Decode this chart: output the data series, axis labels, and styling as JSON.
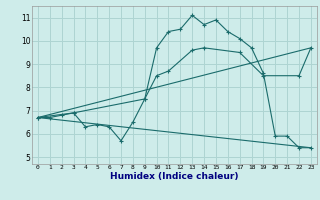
{
  "xlabel": "Humidex (Indice chaleur)",
  "xlim": [
    -0.5,
    23.5
  ],
  "ylim": [
    4.7,
    11.5
  ],
  "yticks": [
    5,
    6,
    7,
    8,
    9,
    10,
    11
  ],
  "xticks": [
    0,
    1,
    2,
    3,
    4,
    5,
    6,
    7,
    8,
    9,
    10,
    11,
    12,
    13,
    14,
    15,
    16,
    17,
    18,
    19,
    20,
    21,
    22,
    23
  ],
  "bg_color": "#ceecea",
  "grid_color": "#aed4d2",
  "line_color": "#1a6b6b",
  "line1_x": [
    0,
    1,
    2,
    3,
    4,
    5,
    6,
    7,
    8,
    9,
    10,
    11,
    12,
    13,
    14,
    15,
    16,
    17,
    18,
    19,
    20,
    21,
    22,
    23
  ],
  "line1_y": [
    6.7,
    6.7,
    6.8,
    6.9,
    6.3,
    6.4,
    6.3,
    5.7,
    6.5,
    7.5,
    9.7,
    10.4,
    10.5,
    11.1,
    10.7,
    10.9,
    10.4,
    10.1,
    9.7,
    8.6,
    5.9,
    5.9,
    5.4,
    5.4
  ],
  "line2_x": [
    0,
    3,
    9,
    10,
    11,
    13,
    14,
    17,
    19,
    22,
    23
  ],
  "line2_y": [
    6.7,
    6.9,
    7.5,
    8.5,
    8.7,
    9.6,
    9.7,
    9.5,
    8.5,
    8.5,
    9.7
  ],
  "line3_x": [
    0,
    23
  ],
  "line3_y": [
    6.7,
    5.4
  ],
  "line4_x": [
    0,
    23
  ],
  "line4_y": [
    6.7,
    9.7
  ]
}
